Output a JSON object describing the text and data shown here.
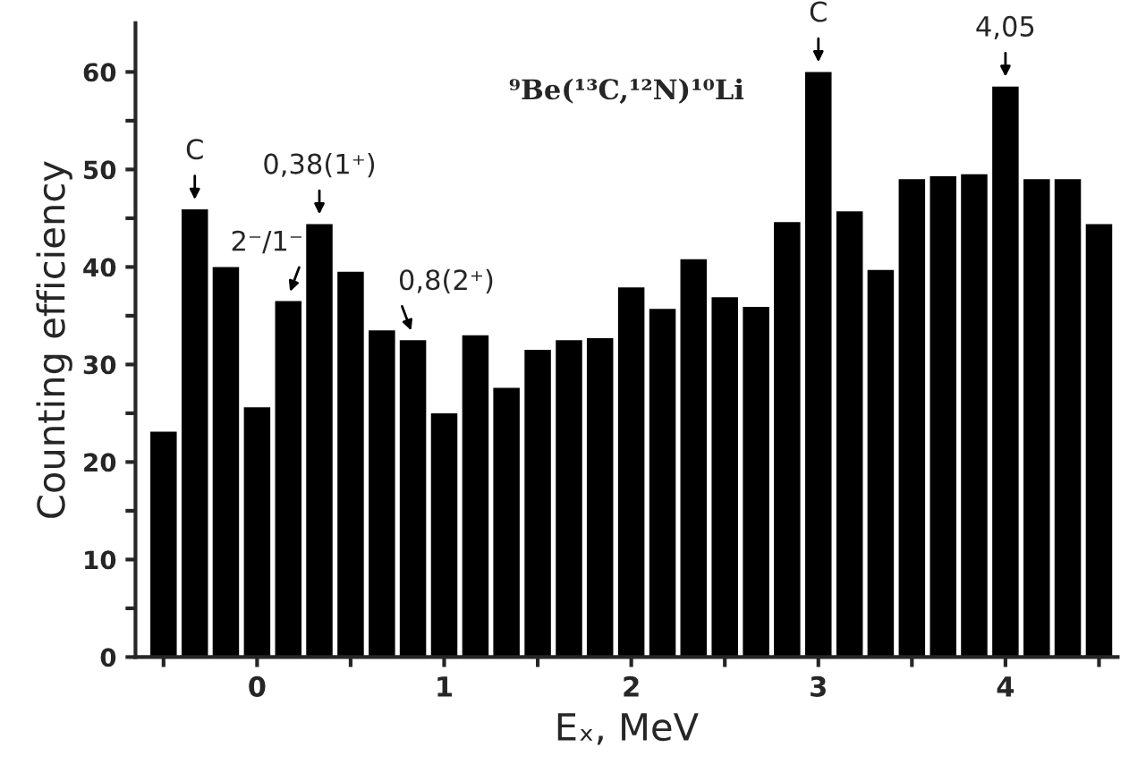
{
  "chart_data": {
    "type": "bar",
    "title": "⁹Be(¹³C,¹²N)¹⁰Li",
    "xlabel": "Eₓ, MeV",
    "ylabel": "Counting efficiency",
    "x": [
      -0.5,
      -0.333,
      -0.167,
      0,
      0.167,
      0.333,
      0.5,
      0.667,
      0.833,
      1,
      1.167,
      1.333,
      1.5,
      1.667,
      1.833,
      2,
      2.167,
      2.333,
      2.5,
      2.667,
      2.833,
      3,
      3.167,
      3.333,
      3.5,
      3.667,
      3.833,
      4,
      4.167,
      4.333,
      4.5
    ],
    "series": [
      {
        "color": "#000000",
        "values": [
          23.1,
          45.9,
          40.0,
          25.6,
          36.5,
          44.4,
          39.5,
          33.5,
          32.5,
          25.0,
          33.0,
          27.6,
          31.5,
          32.5,
          32.7,
          37.9,
          35.7,
          40.8,
          36.9,
          35.9,
          44.6,
          60.0,
          45.7,
          39.7,
          49.0,
          49.3,
          49.5,
          58.5,
          49.0,
          49.0,
          44.4
        ]
      }
    ],
    "xlim": [
      -0.65,
      4.6
    ],
    "ylim": [
      0,
      65
    ],
    "xticks": [
      {
        "value": -0.5,
        "label": null
      },
      0,
      {
        "value": 0.5,
        "label": null
      },
      1,
      {
        "value": 1.5,
        "label": null
      },
      2,
      {
        "value": 2.5,
        "label": null
      },
      3,
      {
        "value": 3.5,
        "label": null
      },
      4,
      {
        "value": 4.5,
        "label": null
      }
    ],
    "yticks": [
      0,
      {
        "value": 5,
        "label": null
      },
      10,
      {
        "value": 15,
        "label": null
      },
      20,
      {
        "value": 25,
        "label": null
      },
      30,
      {
        "value": 35,
        "label": null
      },
      40,
      {
        "value": 45,
        "label": null
      },
      50,
      {
        "value": 55,
        "label": null
      },
      60
    ],
    "grid": false,
    "legend": false,
    "annotations": [
      {
        "text": "C",
        "x": -0.333,
        "y": 45.9
      },
      {
        "text": "2⁻/1⁻",
        "x": 0.167,
        "y": 36.5
      },
      {
        "text": "0,38(1⁺)",
        "x": 0.333,
        "y": 44.4
      },
      {
        "text": "0,8(2⁺)",
        "x": 0.833,
        "y": 32.5
      },
      {
        "text": "C",
        "x": 3,
        "y": 60.0
      },
      {
        "text": "4,05",
        "x": 4,
        "y": 58.5
      }
    ]
  }
}
